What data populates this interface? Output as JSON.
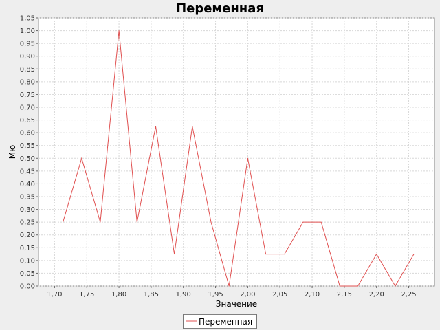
{
  "chart_data": {
    "type": "line",
    "title": "Переменная",
    "xlabel": "Значение",
    "ylabel": "Мю",
    "xlim": [
      1.675,
      2.29
    ],
    "ylim": [
      0,
      1.05
    ],
    "x_ticks": [
      1.7,
      1.75,
      1.8,
      1.85,
      1.9,
      1.95,
      2.0,
      2.05,
      2.1,
      2.15,
      2.2,
      2.25
    ],
    "x_tick_labels": [
      "1,70",
      "1,75",
      "1,80",
      "1,85",
      "1,90",
      "1,95",
      "2,00",
      "2,05",
      "2,10",
      "2,15",
      "2,20",
      "2,25"
    ],
    "y_ticks": [
      0,
      0.05,
      0.1,
      0.15,
      0.2,
      0.25,
      0.3,
      0.35,
      0.4,
      0.45,
      0.5,
      0.55,
      0.6,
      0.65,
      0.7,
      0.75,
      0.8,
      0.85,
      0.9,
      0.95,
      1.0,
      1.05
    ],
    "y_tick_labels": [
      "0,00",
      "0,05",
      "0,10",
      "0,15",
      "0,20",
      "0,25",
      "0,30",
      "0,35",
      "0,40",
      "0,45",
      "0,50",
      "0,55",
      "0,60",
      "0,65",
      "0,70",
      "0,75",
      "0,80",
      "0,85",
      "0,90",
      "0,95",
      "1,00",
      "1,05"
    ],
    "grid": true,
    "legend_position": "bottom-center",
    "series": [
      {
        "name": "Переменная",
        "color": "#e05050",
        "x": [
          1.713,
          1.742,
          1.771,
          1.8,
          1.828,
          1.857,
          1.886,
          1.914,
          1.943,
          1.971,
          2.0,
          2.028,
          2.057,
          2.086,
          2.114,
          2.143,
          2.171,
          2.2,
          2.229,
          2.258
        ],
        "y": [
          0.25,
          0.5,
          0.25,
          1.0,
          0.25,
          0.625,
          0.125,
          0.625,
          0.25,
          0.0,
          0.5,
          0.125,
          0.125,
          0.25,
          0.25,
          0.0,
          0.0,
          0.125,
          0.0,
          0.125
        ]
      }
    ]
  }
}
